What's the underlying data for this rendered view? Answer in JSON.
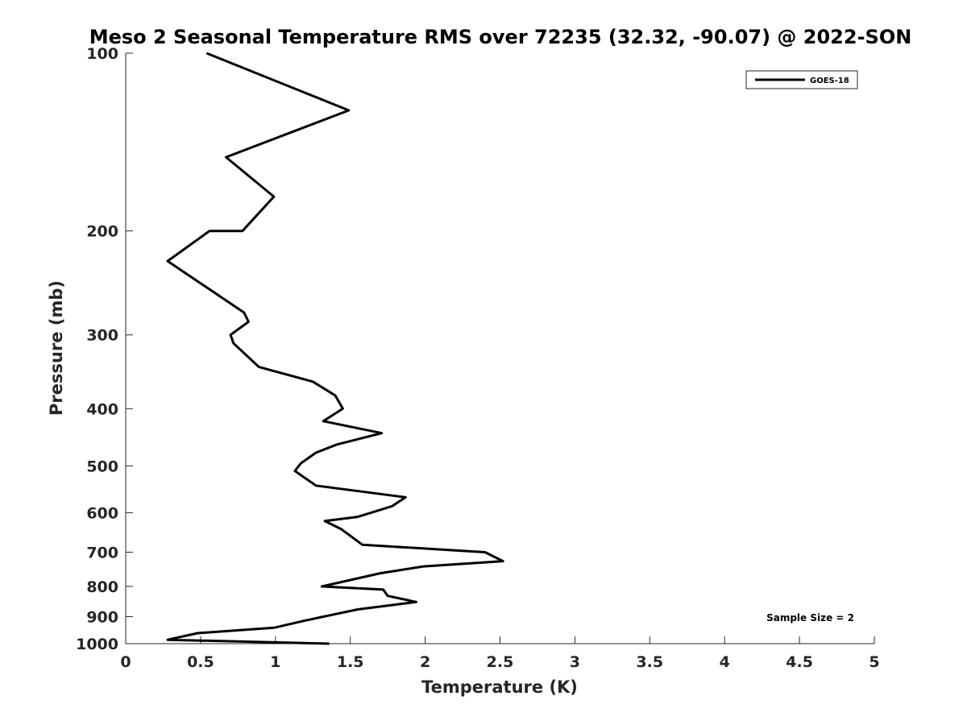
{
  "chart_data": {
    "type": "line",
    "title": "Meso 2 Seasonal Temperature RMS over 72235 (32.32, -90.07) @ 2022-SON",
    "xlabel": "Temperature (K)",
    "ylabel": "Pressure (mb)",
    "xlim": [
      0,
      5
    ],
    "ylim": [
      100,
      1000
    ],
    "y_scale": "log",
    "y_reversed": true,
    "x_ticks": [
      "0",
      "0.5",
      "1",
      "1.5",
      "2",
      "2.5",
      "3",
      "3.5",
      "4",
      "4.5",
      "5"
    ],
    "y_ticks": [
      "100",
      "200",
      "300",
      "400",
      "500",
      "600",
      "700",
      "800",
      "900",
      "1000"
    ],
    "grid": false,
    "legend_placement": "top-right",
    "annotation": "Sample Size = 2",
    "series": [
      {
        "name": "GOES-18",
        "color": "#000000",
        "points": [
          [
            0.54,
            100
          ],
          [
            1.49,
            125
          ],
          [
            0.67,
            150
          ],
          [
            0.99,
            175
          ],
          [
            0.78,
            200
          ],
          [
            0.56,
            200
          ],
          [
            0.28,
            225
          ],
          [
            0.79,
            275
          ],
          [
            0.82,
            285
          ],
          [
            0.7,
            300
          ],
          [
            0.72,
            310
          ],
          [
            0.89,
            340
          ],
          [
            1.25,
            360
          ],
          [
            1.4,
            380
          ],
          [
            1.45,
            400
          ],
          [
            1.32,
            420
          ],
          [
            1.71,
            440
          ],
          [
            1.41,
            460
          ],
          [
            1.27,
            475
          ],
          [
            1.17,
            495
          ],
          [
            1.13,
            510
          ],
          [
            1.27,
            540
          ],
          [
            1.87,
            565
          ],
          [
            1.78,
            585
          ],
          [
            1.55,
            610
          ],
          [
            1.33,
            620
          ],
          [
            1.44,
            640
          ],
          [
            1.58,
            680
          ],
          [
            2.4,
            700
          ],
          [
            2.52,
            725
          ],
          [
            1.99,
            740
          ],
          [
            1.7,
            760
          ],
          [
            1.31,
            800
          ],
          [
            1.72,
            810
          ],
          [
            1.75,
            830
          ],
          [
            1.94,
            850
          ],
          [
            1.55,
            875
          ],
          [
            1.32,
            900
          ],
          [
            1.19,
            915
          ],
          [
            0.99,
            940
          ],
          [
            0.48,
            960
          ],
          [
            0.28,
            985
          ],
          [
            1.36,
            1000
          ]
        ]
      }
    ]
  }
}
